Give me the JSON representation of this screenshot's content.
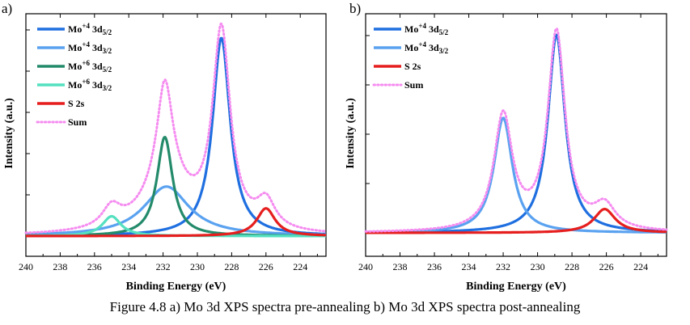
{
  "caption": "Figure 4.8 a) Mo 3d XPS spectra pre-annealing b) Mo 3d XPS spectra post-annealing",
  "legend_tokens": {
    "mo4": "Mo",
    "mo6": "Mo",
    "sup4": "+4",
    "sup6": "+6",
    "d52_main": " 3d",
    "d52_sub": "5/2",
    "d32_main": " 3d",
    "d32_sub": "3/2",
    "s2s": "S 2s",
    "sum": "Sum"
  },
  "chart_data": [
    {
      "type": "line",
      "panel_label": "a)",
      "xlabel": "Binding Energy (eV)",
      "ylabel": "Intensity (a.u.)",
      "xlim": [
        240,
        222.5
      ],
      "x_reversed": true,
      "xticks": [
        240,
        238,
        236,
        234,
        232,
        230,
        228,
        226,
        224
      ],
      "ylim": [
        0,
        1.0
      ],
      "legend_position": "top-left",
      "series": [
        {
          "name": "Mo+4 3d5/2",
          "color": "#1f6fe0",
          "style": "solid",
          "center": 228.6,
          "height": 1.0,
          "width": 0.62
        },
        {
          "name": "Mo+4 3d3/2",
          "color": "#5aa2f0",
          "style": "solid",
          "center": 231.8,
          "height": 0.25,
          "width": 1.6
        },
        {
          "name": "Mo+6 3d5/2",
          "color": "#238a6a",
          "style": "solid",
          "center": 231.9,
          "height": 0.5,
          "width": 0.55
        },
        {
          "name": "Mo+6 3d3/2",
          "color": "#55e0c0",
          "style": "solid",
          "center": 235.0,
          "height": 0.1,
          "width": 0.65
        },
        {
          "name": "S 2s",
          "color": "#e61e1e",
          "style": "solid",
          "center": 226.0,
          "height": 0.14,
          "width": 0.65
        },
        {
          "name": "Sum",
          "color": "#f58cf0",
          "style": "dotted",
          "peaks": [
            [
              228.6,
              1.0,
              0.62
            ],
            [
              231.8,
              0.25,
              1.6
            ],
            [
              231.9,
              0.5,
              0.55
            ],
            [
              235.0,
              0.1,
              0.65
            ],
            [
              226.0,
              0.14,
              0.65
            ]
          ]
        }
      ]
    },
    {
      "type": "line",
      "panel_label": "b)",
      "xlabel": "Binding Energy (eV)",
      "ylabel": "Intensity (a.u.)",
      "xlim": [
        240,
        222.5
      ],
      "x_reversed": true,
      "xticks": [
        240,
        238,
        236,
        234,
        232,
        230,
        228,
        226,
        224
      ],
      "ylim": [
        0,
        1.0
      ],
      "legend_position": "top-left",
      "series": [
        {
          "name": "Mo+4 3d5/2",
          "color": "#1f6fe0",
          "style": "solid",
          "center": 228.9,
          "height": 1.0,
          "width": 0.6
        },
        {
          "name": "Mo+4 3d3/2",
          "color": "#5aa2f0",
          "style": "solid",
          "center": 232.0,
          "height": 0.58,
          "width": 0.65
        },
        {
          "name": "S 2s",
          "color": "#e61e1e",
          "style": "solid",
          "center": 226.1,
          "height": 0.12,
          "width": 0.75
        },
        {
          "name": "Sum",
          "color": "#f58cf0",
          "style": "dotted",
          "peaks": [
            [
              228.9,
              1.0,
              0.6
            ],
            [
              232.0,
              0.58,
              0.65
            ],
            [
              226.1,
              0.12,
              0.75
            ]
          ]
        }
      ]
    }
  ]
}
